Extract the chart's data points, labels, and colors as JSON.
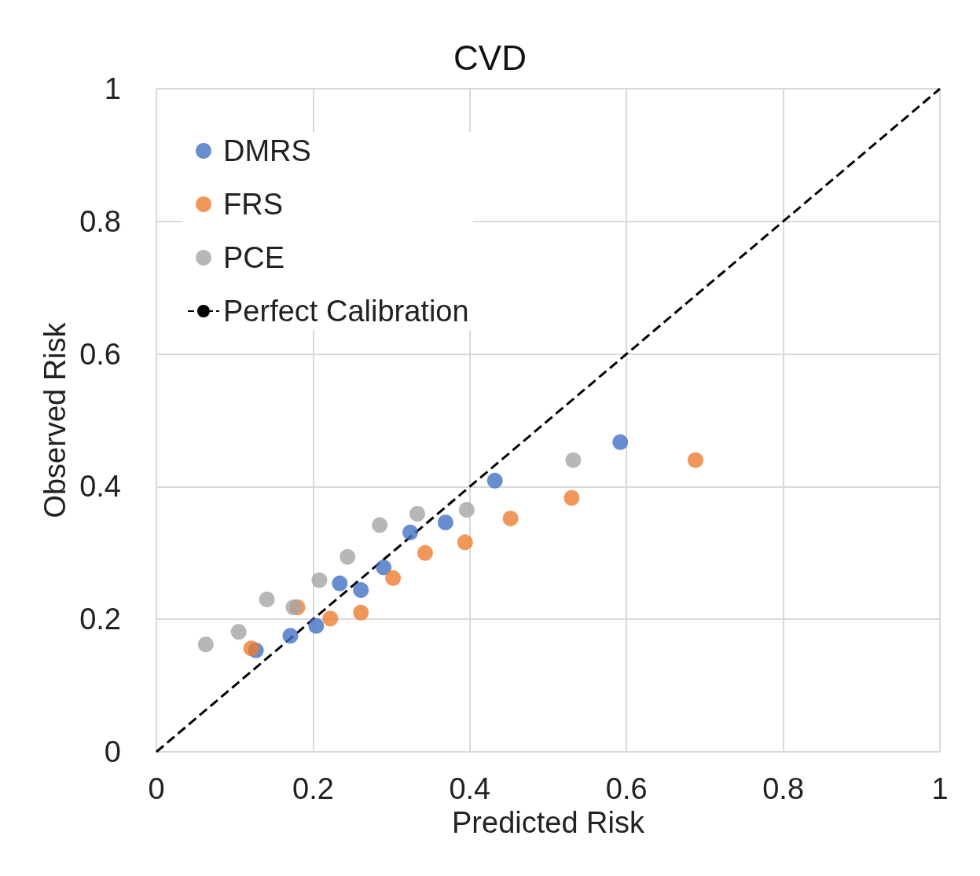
{
  "chart_data": {
    "type": "scatter",
    "title": "CVD",
    "xlabel": "Predicted Risk",
    "ylabel": "Observed Risk",
    "xlim": [
      0,
      1
    ],
    "ylim": [
      0,
      1
    ],
    "xticks": [
      0,
      0.2,
      0.4,
      0.6,
      0.8,
      1
    ],
    "yticks": [
      0,
      0.2,
      0.4,
      0.6,
      0.8,
      1
    ],
    "grid": true,
    "legend": "top left",
    "marker": "circle",
    "series": [
      {
        "name": "DMRS",
        "color": "#4472c4",
        "x": [
          0.127,
          0.171,
          0.204,
          0.234,
          0.261,
          0.29,
          0.324,
          0.369,
          0.432,
          0.592
        ],
        "values": [
          0.153,
          0.175,
          0.19,
          0.254,
          0.244,
          0.278,
          0.331,
          0.346,
          0.409,
          0.467
        ]
      },
      {
        "name": "FRS",
        "color": "#ed7d31",
        "x": [
          0.121,
          0.18,
          0.222,
          0.261,
          0.302,
          0.343,
          0.394,
          0.452,
          0.53,
          0.688
        ],
        "values": [
          0.156,
          0.218,
          0.201,
          0.21,
          0.262,
          0.3,
          0.316,
          0.352,
          0.383,
          0.44
        ]
      },
      {
        "name": "PCE",
        "color": "#a5a5a5",
        "x": [
          0.063,
          0.105,
          0.141,
          0.175,
          0.208,
          0.244,
          0.285,
          0.333,
          0.396,
          0.532
        ],
        "values": [
          0.162,
          0.181,
          0.23,
          0.218,
          0.259,
          0.294,
          0.342,
          0.359,
          0.365,
          0.44
        ]
      },
      {
        "name": "Perfect Calibration",
        "type": "line",
        "color": "#000000",
        "line_style": "dashed",
        "marker": "none",
        "x": [
          0,
          1
        ],
        "values": [
          0,
          1
        ]
      }
    ]
  }
}
